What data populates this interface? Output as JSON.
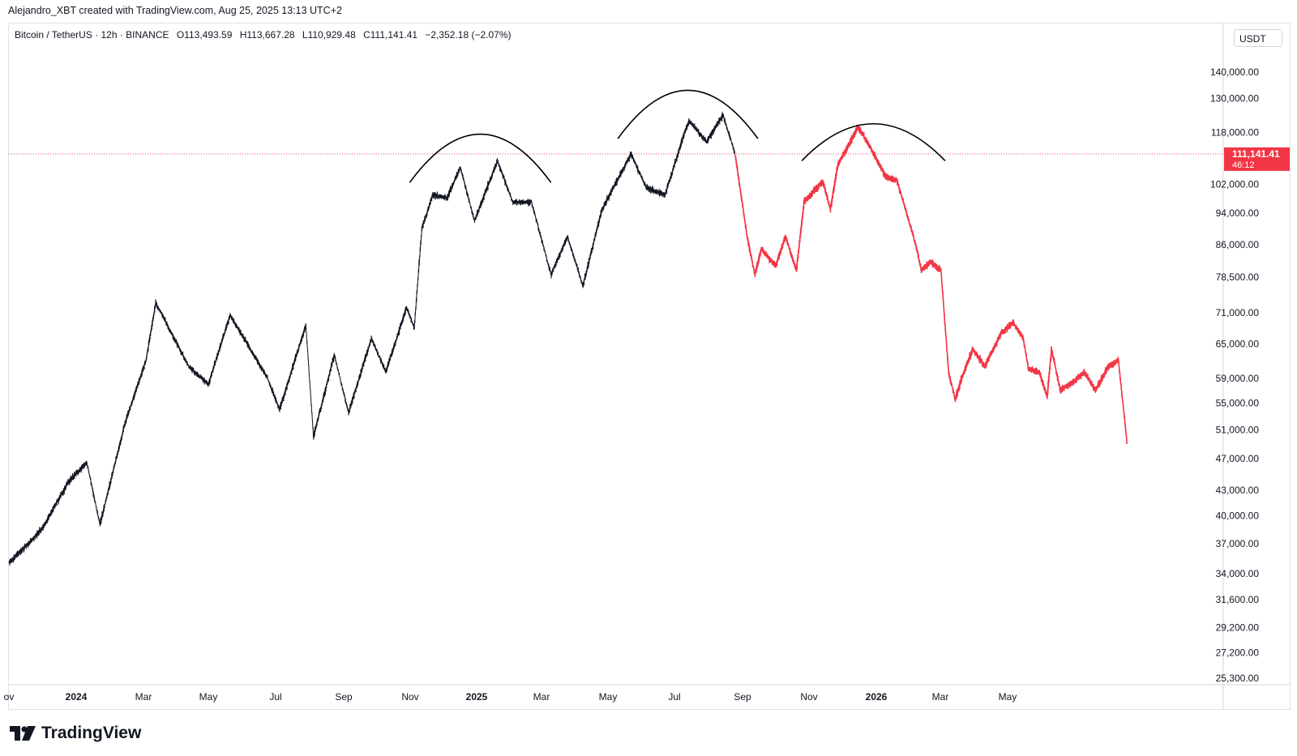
{
  "header": {
    "credit": "Alejandro_XBT created with TradingView.com, Aug 25, 2025 13:13 UTC+2"
  },
  "legend": {
    "symbol": "Bitcoin / TetherUS · 12h · BINANCE",
    "open": "O113,493.59",
    "high": "H113,667.28",
    "low": "L110,929.48",
    "close": "C111,141.41",
    "change": "−2,352.18 (−2.07%)"
  },
  "price_scale": {
    "currency": "USDT",
    "last_price": "111,141.41",
    "countdown": "46:12"
  },
  "footer": {
    "brand": "TradingView"
  },
  "colors": {
    "history": "#131722",
    "projection": "#f23645",
    "price_line": "#f23645",
    "arcs": "#000000"
  },
  "chart_data": {
    "type": "line",
    "y_scale": "log",
    "ylim": [
      25300,
      150000
    ],
    "y_ticks": [
      "140,000.00",
      "130,000.00",
      "118,000.00",
      "102,000.00",
      "94,000.00",
      "86,000.00",
      "78,500.00",
      "71,000.00",
      "65,000.00",
      "59,000.00",
      "55,000.00",
      "51,000.00",
      "47,000.00",
      "43,000.00",
      "40,000.00",
      "37,000.00",
      "34,000.00",
      "31,600.00",
      "29,200.00",
      "27,200.00",
      "25,300.00"
    ],
    "x_ticks": [
      {
        "label": "ov",
        "bold": false
      },
      {
        "label": "2024",
        "bold": true
      },
      {
        "label": "Mar",
        "bold": false
      },
      {
        "label": "May",
        "bold": false
      },
      {
        "label": "Jul",
        "bold": false
      },
      {
        "label": "Sep",
        "bold": false
      },
      {
        "label": "Nov",
        "bold": false
      },
      {
        "label": "2025",
        "bold": true
      },
      {
        "label": "Mar",
        "bold": false
      },
      {
        "label": "May",
        "bold": false
      },
      {
        "label": "Jul",
        "bold": false
      },
      {
        "label": "Sep",
        "bold": false
      },
      {
        "label": "Nov",
        "bold": false
      },
      {
        "label": "2026",
        "bold": true
      },
      {
        "label": "Mar",
        "bold": false
      },
      {
        "label": "May",
        "bold": false
      }
    ],
    "last_price": 111141.41,
    "series": [
      {
        "style": "history",
        "x": [
          "2023-11-01",
          "2023-12-01",
          "2023-12-25",
          "2024-01-11",
          "2024-01-23",
          "2024-02-15",
          "2024-03-05",
          "2024-03-14",
          "2024-04-13",
          "2024-05-01",
          "2024-05-21",
          "2024-06-24",
          "2024-07-05",
          "2024-07-29",
          "2024-08-05",
          "2024-08-24",
          "2024-09-06",
          "2024-09-27",
          "2024-10-10",
          "2024-10-29",
          "2024-11-05",
          "2024-11-12",
          "2024-11-22",
          "2024-12-05",
          "2024-12-17",
          "2024-12-30",
          "2025-01-20",
          "2025-02-03",
          "2025-02-20",
          "2025-03-10",
          "2025-03-25",
          "2025-04-08",
          "2025-04-25",
          "2025-05-09",
          "2025-05-22",
          "2025-06-05",
          "2025-06-22",
          "2025-07-10",
          "2025-07-14",
          "2025-07-30",
          "2025-08-14",
          "2025-08-25"
        ],
        "y": [
          35000,
          38500,
          44000,
          46500,
          39000,
          52000,
          62000,
          73000,
          61000,
          58000,
          70500,
          59000,
          54000,
          68500,
          50000,
          63000,
          53500,
          66000,
          60000,
          72000,
          68000,
          90000,
          99000,
          98000,
          107000,
          92000,
          109000,
          97000,
          97000,
          79000,
          88000,
          76500,
          94500,
          103000,
          111000,
          101000,
          99000,
          118000,
          122000,
          115000,
          124000,
          111141
        ]
      },
      {
        "style": "projection",
        "x": [
          "2025-08-25",
          "2025-09-05",
          "2025-09-12",
          "2025-09-18",
          "2025-10-01",
          "2025-10-10",
          "2025-10-20",
          "2025-10-27",
          "2025-11-05",
          "2025-11-13",
          "2025-11-20",
          "2025-11-27",
          "2025-12-10",
          "2025-12-15",
          "2025-12-27",
          "2026-01-10",
          "2026-01-20",
          "2026-02-06",
          "2026-02-11",
          "2026-02-20",
          "2026-03-01",
          "2026-03-08",
          "2026-03-14",
          "2026-03-20",
          "2026-03-30",
          "2026-04-10",
          "2026-04-25",
          "2026-05-06",
          "2026-05-15",
          "2026-05-20",
          "2026-05-30",
          "2026-06-06",
          "2026-06-10",
          "2026-06-18",
          "2026-07-01",
          "2026-07-10",
          "2026-07-20",
          "2026-08-01",
          "2026-08-10",
          "2026-08-18"
        ],
        "y": [
          111000,
          88000,
          79000,
          85000,
          81000,
          88000,
          80000,
          97000,
          100000,
          103000,
          95000,
          108000,
          116000,
          120000,
          113000,
          104000,
          103000,
          86000,
          80000,
          82000,
          80000,
          60000,
          55500,
          59000,
          64000,
          61000,
          67000,
          69000,
          66000,
          60500,
          60000,
          56000,
          64000,
          57000,
          58500,
          60000,
          57000,
          61000,
          62000,
          49000
        ]
      }
    ],
    "annotations": [
      {
        "type": "arc",
        "from": "2024-11-01",
        "to": "2025-03-10",
        "peak_y": 117500,
        "base_y": 102500
      },
      {
        "type": "arc",
        "from": "2025-05-10",
        "to": "2025-09-15",
        "peak_y": 133000,
        "base_y": 116000
      },
      {
        "type": "arc",
        "from": "2025-10-25",
        "to": "2026-03-05",
        "peak_y": 121000,
        "base_y": 109000
      }
    ]
  }
}
